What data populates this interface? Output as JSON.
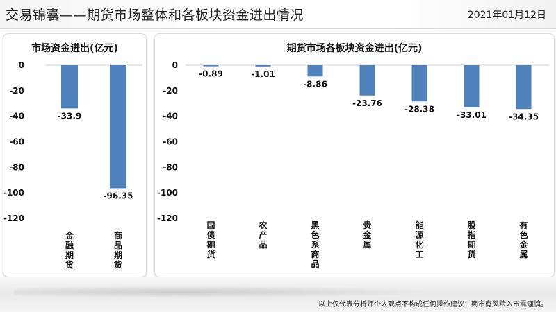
{
  "header": {
    "title": "交易锦囊——期货市场整体和各板块资金进出情况",
    "date": "2021年01月12日"
  },
  "footer": {
    "disclaimer": "以上仅代表分析师个人观点不构成任何操作建议；期市有风险入市需谨慎。"
  },
  "colors": {
    "bar": "#4f81bd",
    "grid": "#d9d9d9"
  },
  "chart_data": [
    {
      "type": "bar",
      "title": "市场资金进出(亿元)",
      "categories": [
        "金融期货",
        "商品期货"
      ],
      "values": [
        -33.9,
        -96.35
      ],
      "value_labels": [
        "-33.9",
        "-96.35"
      ],
      "yticks": [
        "0",
        "-20",
        "-40",
        "-60",
        "-80",
        "-100",
        "-120"
      ],
      "ylim": [
        -120,
        0
      ],
      "grid": false,
      "legend": "none"
    },
    {
      "type": "bar",
      "title": "期货市场各板块资金进出(亿元)",
      "categories": [
        "国债期货",
        "农产品",
        "黑色系商品",
        "贵金属",
        "能源化工",
        "股指期货",
        "有色金属"
      ],
      "values": [
        -0.89,
        -1.01,
        -8.86,
        -23.76,
        -28.38,
        -33.01,
        -34.35
      ],
      "value_labels": [
        "-0.89",
        "-1.01",
        "-8.86",
        "-23.76",
        "-28.38",
        "-33.01",
        "-34.35"
      ],
      "yticks": [
        "0",
        "-20",
        "-40",
        "-60",
        "-80",
        "-100",
        "-120"
      ],
      "ylim": [
        -120,
        0
      ],
      "grid": false,
      "legend": "none"
    }
  ]
}
